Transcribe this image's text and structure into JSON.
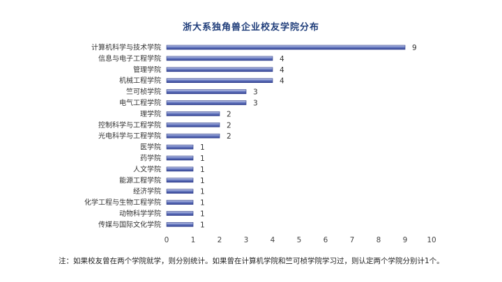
{
  "chart_data": {
    "type": "bar",
    "orientation": "horizontal",
    "title": "浙大系独角兽企业校友学院分布",
    "categories": [
      "计算机科学与技术学院",
      "信息与电子工程学院",
      "管理学院",
      "机械工程学院",
      "竺可桢学院",
      "电气工程学院",
      "理学院",
      "控制科学与工程学院",
      "光电科学与工程学院",
      "医学院",
      "药学院",
      "人文学院",
      "能源工程学院",
      "经济学院",
      "化学工程与生物工程学院",
      "动物科学学院",
      "传媒与国际文化学院"
    ],
    "values": [
      9,
      4,
      4,
      4,
      3,
      3,
      2,
      2,
      2,
      1,
      1,
      1,
      1,
      1,
      1,
      1,
      1
    ],
    "xlim": [
      0,
      10
    ],
    "xticks": [
      0,
      1,
      2,
      3,
      4,
      5,
      6,
      7,
      8,
      9,
      10
    ],
    "grid": false,
    "legend": "none",
    "bar_color": "#3b4fa6",
    "footnote": "注：如果校友曾在两个学院就学，则分别统计。如果曾在计算机学院和竺可桢学院学习过，则认定两个学院分别计1个。"
  }
}
